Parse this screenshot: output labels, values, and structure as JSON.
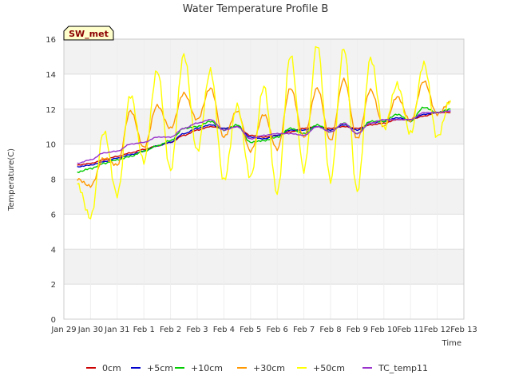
{
  "chart_data": {
    "type": "line",
    "title": "Water Temperature Profile B",
    "xlabel": "Time",
    "ylabel": "Temperature(C)",
    "ylim": [
      0,
      16
    ],
    "yticks": [
      0,
      2,
      4,
      6,
      8,
      10,
      12,
      14,
      16
    ],
    "xlim": [
      "Jan 29",
      "Feb 13"
    ],
    "xticks": [
      "Jan 29",
      "Jan 30",
      "Jan 31",
      "Feb 1",
      "Feb 2",
      "Feb 3",
      "Feb 4",
      "Feb 5",
      "Feb 6",
      "Feb 7",
      "Feb 8",
      "Feb 9",
      "Feb 10",
      "Feb 11",
      "Feb 12",
      "Feb 13"
    ],
    "x": [
      "Jan 29",
      "Jan 29 12:00",
      "Jan 30",
      "Jan 30 12:00",
      "Jan 31",
      "Jan 31 12:00",
      "Feb 1",
      "Feb 1 12:00",
      "Feb 2",
      "Feb 2 12:00",
      "Feb 3",
      "Feb 3 12:00",
      "Feb 4",
      "Feb 4 12:00",
      "Feb 5",
      "Feb 5 12:00",
      "Feb 6",
      "Feb 6 12:00",
      "Feb 7",
      "Feb 7 12:00",
      "Feb 8",
      "Feb 8 12:00",
      "Feb 9",
      "Feb 9 12:00",
      "Feb 10",
      "Feb 10 12:00",
      "Feb 11",
      "Feb 11 12:00",
      "Feb 12",
      "Feb 12 12:00"
    ],
    "grid": true,
    "legend_position": "bottom",
    "station_label": "SW_met",
    "series": [
      {
        "name": "0cm",
        "color": "#cc0000",
        "values": [
          null,
          8.8,
          8.9,
          9.1,
          9.3,
          9.5,
          9.7,
          9.9,
          10.1,
          10.5,
          10.8,
          11.0,
          10.9,
          11.0,
          10.5,
          10.4,
          10.5,
          10.7,
          10.9,
          11.0,
          10.9,
          11.0,
          10.9,
          11.1,
          11.2,
          11.4,
          11.4,
          11.6,
          11.8,
          11.8
        ]
      },
      {
        "name": "+5cm",
        "color": "#0000cc",
        "values": [
          null,
          8.7,
          8.8,
          9.0,
          9.2,
          9.4,
          9.6,
          9.9,
          10.1,
          10.6,
          10.9,
          11.1,
          10.9,
          11.0,
          10.4,
          10.3,
          10.5,
          10.8,
          10.8,
          11.0,
          10.8,
          11.1,
          10.8,
          11.2,
          11.3,
          11.5,
          11.4,
          11.7,
          11.8,
          11.9
        ]
      },
      {
        "name": "+10cm",
        "color": "#00cc00",
        "values": [
          null,
          8.4,
          8.6,
          8.9,
          9.1,
          9.3,
          9.6,
          9.9,
          10.2,
          10.9,
          11.0,
          11.3,
          10.8,
          11.1,
          10.1,
          10.2,
          10.4,
          10.9,
          10.6,
          11.1,
          10.7,
          11.2,
          10.6,
          11.3,
          11.3,
          11.7,
          11.3,
          12.1,
          11.8,
          12.0
        ]
      },
      {
        "name": "+30cm",
        "color": "#ff9900",
        "values": [
          null,
          8.0,
          7.6,
          9.2,
          8.8,
          11.9,
          9.8,
          12.2,
          10.9,
          12.9,
          11.4,
          13.2,
          10.4,
          11.9,
          9.6,
          11.7,
          9.7,
          13.2,
          10.4,
          13.2,
          10.2,
          13.7,
          10.3,
          13.1,
          11.0,
          12.7,
          11.3,
          13.6,
          11.7,
          12.4
        ]
      },
      {
        "name": "+50cm",
        "color": "#ffff00",
        "values": [
          null,
          7.7,
          5.8,
          10.7,
          7.1,
          12.8,
          9.0,
          14.2,
          8.5,
          15.1,
          9.6,
          14.2,
          7.9,
          12.2,
          8.1,
          13.3,
          7.2,
          15.1,
          8.5,
          15.7,
          7.9,
          15.5,
          7.3,
          14.9,
          10.9,
          13.4,
          10.6,
          14.6,
          10.4,
          12.5
        ]
      },
      {
        "name": "TC_temp11",
        "color": "#9933cc",
        "values": [
          null,
          8.9,
          9.1,
          9.5,
          9.6,
          10.0,
          10.1,
          10.4,
          10.4,
          10.9,
          11.2,
          11.4,
          10.8,
          11.0,
          10.3,
          10.5,
          10.6,
          10.6,
          10.5,
          11.0,
          10.7,
          11.2,
          10.6,
          11.2,
          11.4,
          11.4,
          11.4,
          11.8,
          11.8,
          11.9
        ]
      }
    ]
  }
}
